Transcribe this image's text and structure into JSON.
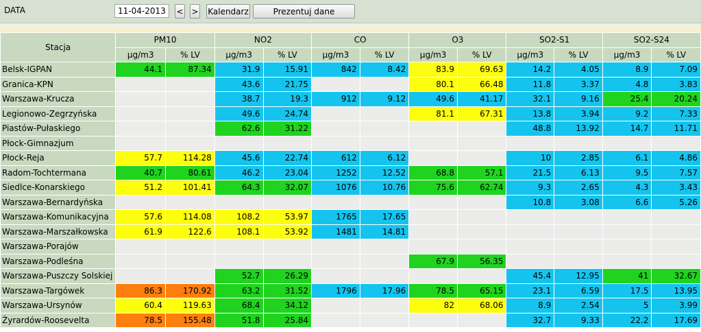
{
  "toolbar": {
    "label": "DATA",
    "date_value": "11-04-2013",
    "prev_label": "<",
    "next_label": ">",
    "calendar_label": "Kalendarz",
    "present_label": "Prezentuj dane"
  },
  "table": {
    "station_header": "Stacja",
    "pollutants": [
      "PM10",
      "NO2",
      "CO",
      "O3",
      "SO2-S1",
      "SO2-S24"
    ],
    "unit_headers": [
      "µg/m3",
      "% LV"
    ],
    "colors": {
      "g": "#1fd31f",
      "b": "#14c4ee",
      "y": "#fdfd0e",
      "o": "#fc7f10",
      "e": "#ececea"
    },
    "rows": [
      {
        "station": "Belsk-IGPAN",
        "cells": [
          [
            "44.1",
            "g"
          ],
          [
            "87.34",
            "g"
          ],
          [
            "31.9",
            "b"
          ],
          [
            "15.91",
            "b"
          ],
          [
            "842",
            "b"
          ],
          [
            "8.42",
            "b"
          ],
          [
            "83.9",
            "y"
          ],
          [
            "69.63",
            "y"
          ],
          [
            "14.2",
            "b"
          ],
          [
            "4.05",
            "b"
          ],
          [
            "8.9",
            "b"
          ],
          [
            "7.09",
            "b"
          ]
        ]
      },
      {
        "station": "Granica-KPN",
        "cells": [
          [
            "",
            "e"
          ],
          [
            "",
            "e"
          ],
          [
            "43.6",
            "b"
          ],
          [
            "21.75",
            "b"
          ],
          [
            "",
            "e"
          ],
          [
            "",
            "e"
          ],
          [
            "80.1",
            "y"
          ],
          [
            "66.48",
            "y"
          ],
          [
            "11.8",
            "b"
          ],
          [
            "3.37",
            "b"
          ],
          [
            "4.8",
            "b"
          ],
          [
            "3.83",
            "b"
          ]
        ]
      },
      {
        "station": "Warszawa-Krucza",
        "cells": [
          [
            "",
            "e"
          ],
          [
            "",
            "e"
          ],
          [
            "38.7",
            "b"
          ],
          [
            "19.3",
            "b"
          ],
          [
            "912",
            "b"
          ],
          [
            "9.12",
            "b"
          ],
          [
            "49.6",
            "b"
          ],
          [
            "41.17",
            "b"
          ],
          [
            "32.1",
            "b"
          ],
          [
            "9.16",
            "b"
          ],
          [
            "25.4",
            "g"
          ],
          [
            "20.24",
            "g"
          ]
        ]
      },
      {
        "station": "Legionowo-Zegrzyńska",
        "cells": [
          [
            "",
            "e"
          ],
          [
            "",
            "e"
          ],
          [
            "49.6",
            "b"
          ],
          [
            "24.74",
            "b"
          ],
          [
            "",
            "e"
          ],
          [
            "",
            "e"
          ],
          [
            "81.1",
            "y"
          ],
          [
            "67.31",
            "y"
          ],
          [
            "13.8",
            "b"
          ],
          [
            "3.94",
            "b"
          ],
          [
            "9.2",
            "b"
          ],
          [
            "7.33",
            "b"
          ]
        ]
      },
      {
        "station": "Piastów-Pułaskiego",
        "cells": [
          [
            "",
            "e"
          ],
          [
            "",
            "e"
          ],
          [
            "62.6",
            "g"
          ],
          [
            "31.22",
            "g"
          ],
          [
            "",
            "e"
          ],
          [
            "",
            "e"
          ],
          [
            "",
            "e"
          ],
          [
            "",
            "e"
          ],
          [
            "48.8",
            "b"
          ],
          [
            "13.92",
            "b"
          ],
          [
            "14.7",
            "b"
          ],
          [
            "11.71",
            "b"
          ]
        ]
      },
      {
        "station": "Płock-Gimnazjum",
        "cells": [
          [
            "",
            "e"
          ],
          [
            "",
            "e"
          ],
          [
            "",
            "e"
          ],
          [
            "",
            "e"
          ],
          [
            "",
            "e"
          ],
          [
            "",
            "e"
          ],
          [
            "",
            "e"
          ],
          [
            "",
            "e"
          ],
          [
            "",
            "e"
          ],
          [
            "",
            "e"
          ],
          [
            "",
            "e"
          ],
          [
            "",
            "e"
          ]
        ]
      },
      {
        "station": "Płock-Reja",
        "cells": [
          [
            "57.7",
            "y"
          ],
          [
            "114.28",
            "y"
          ],
          [
            "45.6",
            "b"
          ],
          [
            "22.74",
            "b"
          ],
          [
            "612",
            "b"
          ],
          [
            "6.12",
            "b"
          ],
          [
            "",
            "e"
          ],
          [
            "",
            "e"
          ],
          [
            "10",
            "b"
          ],
          [
            "2.85",
            "b"
          ],
          [
            "6.1",
            "b"
          ],
          [
            "4.86",
            "b"
          ]
        ]
      },
      {
        "station": "Radom-Tochtermana",
        "cells": [
          [
            "40.7",
            "g"
          ],
          [
            "80.61",
            "g"
          ],
          [
            "46.2",
            "b"
          ],
          [
            "23.04",
            "b"
          ],
          [
            "1252",
            "b"
          ],
          [
            "12.52",
            "b"
          ],
          [
            "68.8",
            "g"
          ],
          [
            "57.1",
            "g"
          ],
          [
            "21.5",
            "b"
          ],
          [
            "6.13",
            "b"
          ],
          [
            "9.5",
            "b"
          ],
          [
            "7.57",
            "b"
          ]
        ]
      },
      {
        "station": "Siedlce-Konarskiego",
        "cells": [
          [
            "51.2",
            "y"
          ],
          [
            "101.41",
            "y"
          ],
          [
            "64.3",
            "g"
          ],
          [
            "32.07",
            "g"
          ],
          [
            "1076",
            "b"
          ],
          [
            "10.76",
            "b"
          ],
          [
            "75.6",
            "g"
          ],
          [
            "62.74",
            "g"
          ],
          [
            "9.3",
            "b"
          ],
          [
            "2.65",
            "b"
          ],
          [
            "4.3",
            "b"
          ],
          [
            "3.43",
            "b"
          ]
        ]
      },
      {
        "station": "Warszawa-Bernardyńska",
        "cells": [
          [
            "",
            "e"
          ],
          [
            "",
            "e"
          ],
          [
            "",
            "e"
          ],
          [
            "",
            "e"
          ],
          [
            "",
            "e"
          ],
          [
            "",
            "e"
          ],
          [
            "",
            "e"
          ],
          [
            "",
            "e"
          ],
          [
            "10.8",
            "b"
          ],
          [
            "3.08",
            "b"
          ],
          [
            "6.6",
            "b"
          ],
          [
            "5.26",
            "b"
          ]
        ]
      },
      {
        "station": "Warszawa-Komunikacyjna",
        "cells": [
          [
            "57.6",
            "y"
          ],
          [
            "114.08",
            "y"
          ],
          [
            "108.2",
            "y"
          ],
          [
            "53.97",
            "y"
          ],
          [
            "1765",
            "b"
          ],
          [
            "17.65",
            "b"
          ],
          [
            "",
            "e"
          ],
          [
            "",
            "e"
          ],
          [
            "",
            "e"
          ],
          [
            "",
            "e"
          ],
          [
            "",
            "e"
          ],
          [
            "",
            "e"
          ]
        ]
      },
      {
        "station": "Warszawa-Marszałkowska",
        "cells": [
          [
            "61.9",
            "y"
          ],
          [
            "122.6",
            "y"
          ],
          [
            "108.1",
            "y"
          ],
          [
            "53.92",
            "y"
          ],
          [
            "1481",
            "b"
          ],
          [
            "14.81",
            "b"
          ],
          [
            "",
            "e"
          ],
          [
            "",
            "e"
          ],
          [
            "",
            "e"
          ],
          [
            "",
            "e"
          ],
          [
            "",
            "e"
          ],
          [
            "",
            "e"
          ]
        ]
      },
      {
        "station": "Warszawa-Porajów",
        "cells": [
          [
            "",
            "e"
          ],
          [
            "",
            "e"
          ],
          [
            "",
            "e"
          ],
          [
            "",
            "e"
          ],
          [
            "",
            "e"
          ],
          [
            "",
            "e"
          ],
          [
            "",
            "e"
          ],
          [
            "",
            "e"
          ],
          [
            "",
            "e"
          ],
          [
            "",
            "e"
          ],
          [
            "",
            "e"
          ],
          [
            "",
            "e"
          ]
        ]
      },
      {
        "station": "Warszawa-Podleśna",
        "cells": [
          [
            "",
            "e"
          ],
          [
            "",
            "e"
          ],
          [
            "",
            "e"
          ],
          [
            "",
            "e"
          ],
          [
            "",
            "e"
          ],
          [
            "",
            "e"
          ],
          [
            "67.9",
            "g"
          ],
          [
            "56.35",
            "g"
          ],
          [
            "",
            "e"
          ],
          [
            "",
            "e"
          ],
          [
            "",
            "e"
          ],
          [
            "",
            "e"
          ]
        ]
      },
      {
        "station": "Warszawa-Puszczy Solskiej",
        "cells": [
          [
            "",
            "e"
          ],
          [
            "",
            "e"
          ],
          [
            "52.7",
            "g"
          ],
          [
            "26.29",
            "g"
          ],
          [
            "",
            "e"
          ],
          [
            "",
            "e"
          ],
          [
            "",
            "e"
          ],
          [
            "",
            "e"
          ],
          [
            "45.4",
            "b"
          ],
          [
            "12.95",
            "b"
          ],
          [
            "41",
            "g"
          ],
          [
            "32.67",
            "g"
          ]
        ]
      },
      {
        "station": "Warszawa-Targówek",
        "cells": [
          [
            "86.3",
            "o"
          ],
          [
            "170.92",
            "o"
          ],
          [
            "63.2",
            "g"
          ],
          [
            "31.52",
            "g"
          ],
          [
            "1796",
            "b"
          ],
          [
            "17.96",
            "b"
          ],
          [
            "78.5",
            "g"
          ],
          [
            "65.15",
            "g"
          ],
          [
            "23.1",
            "b"
          ],
          [
            "6.59",
            "b"
          ],
          [
            "17.5",
            "b"
          ],
          [
            "13.95",
            "b"
          ]
        ]
      },
      {
        "station": "Warszawa-Ursynów",
        "cells": [
          [
            "60.4",
            "y"
          ],
          [
            "119.63",
            "y"
          ],
          [
            "68.4",
            "g"
          ],
          [
            "34.12",
            "g"
          ],
          [
            "",
            "e"
          ],
          [
            "",
            "e"
          ],
          [
            "82",
            "y"
          ],
          [
            "68.06",
            "y"
          ],
          [
            "8.9",
            "b"
          ],
          [
            "2.54",
            "b"
          ],
          [
            "5",
            "b"
          ],
          [
            "3.99",
            "b"
          ]
        ]
      },
      {
        "station": "Żyrardów-Roosevelta",
        "cells": [
          [
            "78.5",
            "o"
          ],
          [
            "155.48",
            "o"
          ],
          [
            "51.8",
            "g"
          ],
          [
            "25.84",
            "g"
          ],
          [
            "",
            "e"
          ],
          [
            "",
            "e"
          ],
          [
            "",
            "e"
          ],
          [
            "",
            "e"
          ],
          [
            "32.7",
            "b"
          ],
          [
            "9.33",
            "b"
          ],
          [
            "22.2",
            "b"
          ],
          [
            "17.69",
            "b"
          ]
        ]
      }
    ]
  }
}
